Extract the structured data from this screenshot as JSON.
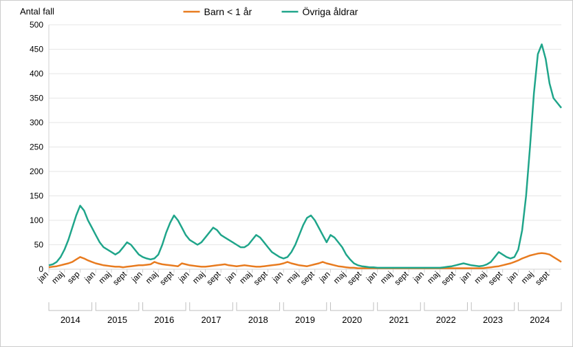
{
  "chart": {
    "type": "line",
    "y_axis_title": "Antal fall",
    "ylim": [
      0,
      500
    ],
    "ytick_step": 50,
    "yticks": [
      0,
      50,
      100,
      150,
      200,
      250,
      300,
      350,
      400,
      450,
      500
    ],
    "background_color": "#ffffff",
    "grid_color": "#e6e6e6",
    "axis_color": "#d0d0d0",
    "line_width": 2.5,
    "title_fontsize": 13,
    "tick_fontsize": 12,
    "legend_fontsize": 14,
    "months_per_year": [
      "jan",
      "maj",
      "sep",
      "jan",
      "maj",
      "sept",
      "jan",
      "maj",
      "sept",
      "jan",
      "maj",
      "sept",
      "jan",
      "maj",
      "sept",
      "jan",
      "maj",
      "sept",
      "jan",
      "maj",
      "sept",
      "jan",
      "maj",
      "sept",
      "jan",
      "maj",
      "sept",
      "jan",
      "maj",
      "sept",
      "jan",
      "maj",
      "sept"
    ],
    "x_tick_labels": [
      "jan",
      "maj",
      "sep",
      "jan",
      "maj",
      "sept",
      "jan",
      "maj",
      "sept",
      "jan",
      "maj",
      "sept",
      "jan",
      "maj",
      "sept",
      "jan",
      "maj",
      "sept",
      "jan",
      "maj",
      "sept",
      "jan",
      "maj",
      "sept",
      "jan",
      "maj",
      "sept",
      "jan",
      "maj",
      "sept",
      "jan",
      "maj",
      "sept"
    ],
    "years": [
      "2014",
      "2015",
      "2016",
      "2017",
      "2018",
      "2019",
      "2020",
      "2021",
      "2022",
      "2023",
      "2024"
    ],
    "series": [
      {
        "name": "Barn < 1 år",
        "color": "#e87b1f",
        "data": [
          4,
          5,
          6,
          8,
          10,
          12,
          15,
          20,
          25,
          22,
          18,
          15,
          12,
          10,
          8,
          7,
          6,
          5,
          5,
          4,
          5,
          6,
          7,
          8,
          8,
          9,
          10,
          15,
          12,
          10,
          9,
          8,
          7,
          6,
          12,
          10,
          8,
          7,
          6,
          5,
          5,
          6,
          7,
          8,
          9,
          10,
          8,
          7,
          6,
          7,
          8,
          7,
          6,
          5,
          5,
          6,
          7,
          8,
          9,
          10,
          12,
          15,
          12,
          10,
          8,
          7,
          6,
          8,
          10,
          12,
          15,
          12,
          10,
          8,
          6,
          5,
          4,
          3,
          3,
          2,
          2,
          2,
          2,
          2,
          2,
          2,
          2,
          2,
          2,
          2,
          2,
          2,
          2,
          2,
          2,
          2,
          2,
          2,
          2,
          2,
          2,
          2,
          2,
          2,
          2,
          2,
          2,
          2,
          2,
          2,
          2,
          2,
          3,
          4,
          5,
          6,
          8,
          10,
          12,
          15,
          18,
          22,
          25,
          28,
          30,
          32,
          33,
          32,
          30,
          25,
          20,
          15
        ]
      },
      {
        "name": "Övriga åldrar",
        "color": "#1fa58a",
        "data": [
          8,
          10,
          15,
          25,
          40,
          60,
          85,
          110,
          130,
          120,
          100,
          85,
          70,
          55,
          45,
          40,
          35,
          30,
          35,
          45,
          55,
          50,
          40,
          30,
          25,
          22,
          20,
          22,
          30,
          50,
          75,
          95,
          110,
          100,
          85,
          70,
          60,
          55,
          50,
          55,
          65,
          75,
          85,
          80,
          70,
          65,
          60,
          55,
          50,
          45,
          45,
          50,
          60,
          70,
          65,
          55,
          45,
          35,
          30,
          25,
          22,
          25,
          35,
          50,
          70,
          90,
          105,
          110,
          100,
          85,
          70,
          55,
          70,
          65,
          55,
          45,
          30,
          20,
          12,
          8,
          6,
          5,
          4,
          4,
          3,
          3,
          3,
          3,
          3,
          3,
          3,
          3,
          3,
          3,
          3,
          3,
          3,
          3,
          3,
          3,
          3,
          4,
          5,
          6,
          8,
          10,
          12,
          10,
          8,
          7,
          6,
          7,
          10,
          15,
          25,
          35,
          30,
          25,
          22,
          25,
          40,
          80,
          150,
          250,
          360,
          440,
          460,
          430,
          380,
          350,
          340,
          330
        ]
      }
    ]
  }
}
